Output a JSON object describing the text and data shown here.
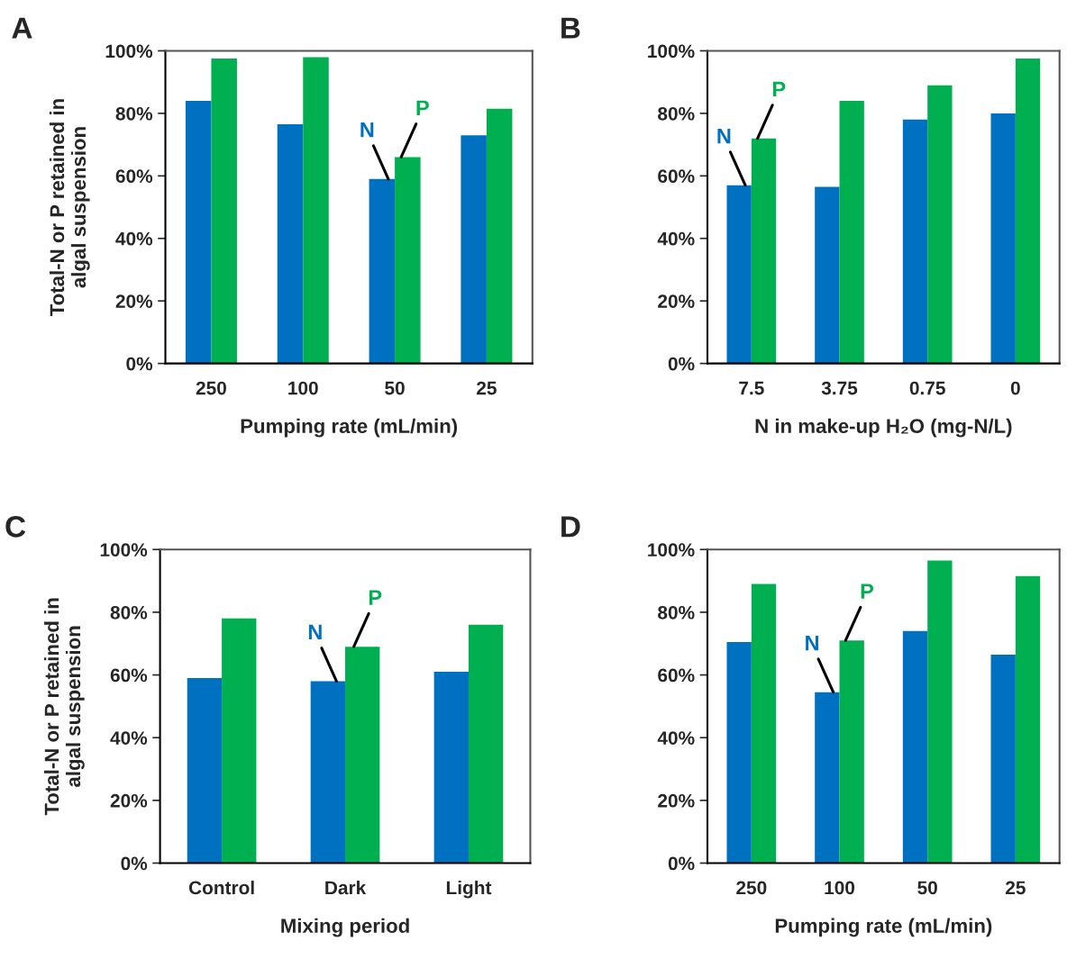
{
  "chart_data": [
    {
      "type": "bar",
      "title": "A",
      "xlabel": "Pumping rate (mL/min)",
      "ylabel": "Total-N or P retained in algal suspension",
      "categories": [
        "250",
        "100",
        "50",
        "25"
      ],
      "series": [
        {
          "color": "#0070c0",
          "values": [
            84,
            76.5,
            59,
            73
          ]
        },
        {
          "color": "#00b050",
          "values": [
            97.5,
            98,
            66,
            81.5
          ]
        }
      ],
      "ylim": [
        0,
        100
      ],
      "yticks": [
        {
          "value": 0,
          "label": "0%"
        },
        {
          "value": 20,
          "label": "20%"
        },
        {
          "value": 40,
          "label": "40%"
        },
        {
          "value": 60,
          "label": "60%"
        },
        {
          "value": 80,
          "label": "80%"
        },
        {
          "value": 100,
          "label": "100%"
        }
      ],
      "annotations": [
        {
          "text": "N",
          "x": "50",
          "y": 59
        },
        {
          "text": "P",
          "x": "50",
          "y": 66
        }
      ],
      "grid": false,
      "legend": false
    },
    {
      "type": "bar",
      "title": "B",
      "xlabel": "N in make-up H₂O (mg-N/L)",
      "categories": [
        "7.5",
        "3.75",
        "0.75",
        "0"
      ],
      "series": [
        {
          "color": "#0070c0",
          "values": [
            57,
            56.5,
            78,
            80
          ]
        },
        {
          "color": "#00b050",
          "values": [
            72,
            84,
            89,
            97.5
          ]
        }
      ],
      "ylim": [
        0,
        100
      ],
      "yticks": [
        {
          "value": 0,
          "label": "0%"
        },
        {
          "value": 20,
          "label": "20%"
        },
        {
          "value": 40,
          "label": "40%"
        },
        {
          "value": 60,
          "label": "60%"
        },
        {
          "value": 80,
          "label": "80%"
        },
        {
          "value": 100,
          "label": "100%"
        }
      ],
      "annotations": [
        {
          "text": "N",
          "x": "7.5",
          "y": 57
        },
        {
          "text": "P",
          "x": "7.5",
          "y": 72
        }
      ],
      "grid": false,
      "legend": false
    },
    {
      "type": "bar",
      "title": "C",
      "xlabel": "Mixing period",
      "ylabel": "Total-N or P retained in algal suspension",
      "categories": [
        "Control",
        "Dark",
        "Light"
      ],
      "series": [
        {
          "color": "#0070c0",
          "values": [
            59,
            58,
            61
          ]
        },
        {
          "color": "#00b050",
          "values": [
            78,
            69,
            76
          ]
        }
      ],
      "ylim": [
        0,
        100
      ],
      "yticks": [
        {
          "value": 0,
          "label": "0%"
        },
        {
          "value": 20,
          "label": "20%"
        },
        {
          "value": 40,
          "label": "40%"
        },
        {
          "value": 60,
          "label": "60%"
        },
        {
          "value": 80,
          "label": "80%"
        },
        {
          "value": 100,
          "label": "100%"
        }
      ],
      "annotations": [
        {
          "text": "N",
          "x": "Dark",
          "y": 58
        },
        {
          "text": "P",
          "x": "Dark",
          "y": 69
        }
      ],
      "grid": false,
      "legend": false
    },
    {
      "type": "bar",
      "title": "D",
      "xlabel": "Pumping rate (mL/min)",
      "categories": [
        "250",
        "100",
        "50",
        "25"
      ],
      "series": [
        {
          "color": "#0070c0",
          "values": [
            70.5,
            54.5,
            74,
            66.5
          ]
        },
        {
          "color": "#00b050",
          "values": [
            89,
            71,
            96.5,
            91.5
          ]
        }
      ],
      "ylim": [
        0,
        100
      ],
      "yticks": [
        {
          "value": 0,
          "label": "0%"
        },
        {
          "value": 20,
          "label": "20%"
        },
        {
          "value": 40,
          "label": "40%"
        },
        {
          "value": 60,
          "label": "60%"
        },
        {
          "value": 80,
          "label": "80%"
        },
        {
          "value": 100,
          "label": "100%"
        }
      ],
      "annotations": [
        {
          "text": "N",
          "x": "100",
          "y": 54.5
        },
        {
          "text": "P",
          "x": "100",
          "y": 71
        }
      ],
      "grid": false,
      "legend": false
    }
  ]
}
